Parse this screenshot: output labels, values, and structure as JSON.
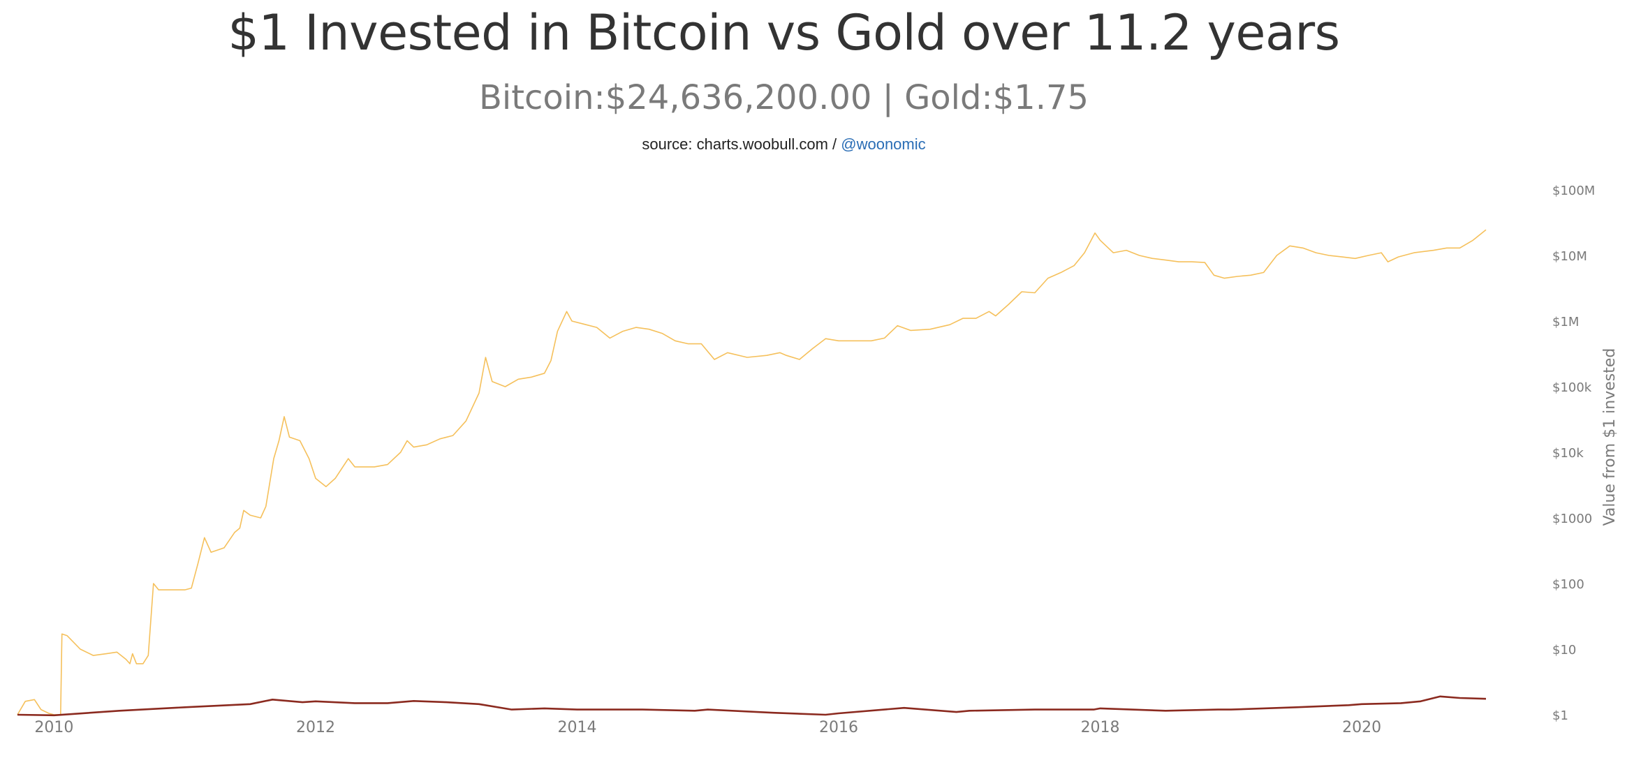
{
  "header": {
    "title": "$1 Invested in Bitcoin vs Gold over 11.2 years",
    "subtitle": "Bitcoin:$24,636,200.00 | Gold:$1.75",
    "source_prefix": "source: charts.woobull.com / ",
    "source_handle": "@woonomic"
  },
  "colors": {
    "bitcoin": "#f5c05b",
    "gold": "#8b2a1f",
    "axis_text": "#7a7a7a",
    "link": "#2a6db5"
  },
  "chart_data": {
    "type": "line",
    "title": "$1 Invested in Bitcoin vs Gold over 11.2 years",
    "subtitle": "Bitcoin:$24,636,200.00 | Gold:$1.75",
    "ylabel": "Value from $1 invested",
    "xlabel": "",
    "y_scale": "log",
    "ylim": [
      1,
      100000000
    ],
    "xlim": [
      2009.72,
      2020.95
    ],
    "x_ticks": [
      2010,
      2012,
      2014,
      2016,
      2018,
      2020
    ],
    "x_tick_labels": [
      "2010",
      "2012",
      "2014",
      "2016",
      "2018",
      "2020"
    ],
    "y_ticks": [
      1,
      10,
      100,
      1000,
      10000,
      100000,
      1000000,
      10000000,
      100000000
    ],
    "y_tick_labels": [
      "$1",
      "$10",
      "$100",
      "$1000",
      "$10k",
      "$100k",
      "$1M",
      "$10M",
      "$100M"
    ],
    "grid": false,
    "legend": "none",
    "series": [
      {
        "points": [
          [
            2009.72,
            1.0
          ],
          [
            2009.78,
            1.6
          ],
          [
            2009.85,
            1.7
          ],
          [
            2009.9,
            1.2
          ],
          [
            2009.96,
            1.05
          ],
          [
            2010.0,
            1.0
          ],
          [
            2010.05,
            1.0
          ],
          [
            2010.06,
            17
          ],
          [
            2010.1,
            16
          ],
          [
            2010.2,
            10
          ],
          [
            2010.3,
            8
          ],
          [
            2010.4,
            8.5
          ],
          [
            2010.48,
            9
          ],
          [
            2010.55,
            7
          ],
          [
            2010.58,
            6
          ],
          [
            2010.6,
            8.5
          ],
          [
            2010.63,
            6
          ],
          [
            2010.68,
            6
          ],
          [
            2010.72,
            8
          ],
          [
            2010.76,
            100
          ],
          [
            2010.8,
            80
          ],
          [
            2010.9,
            80
          ],
          [
            2011.0,
            80
          ],
          [
            2011.05,
            85
          ],
          [
            2011.1,
            200
          ],
          [
            2011.15,
            500
          ],
          [
            2011.2,
            300
          ],
          [
            2011.3,
            350
          ],
          [
            2011.38,
            600
          ],
          [
            2011.42,
            700
          ],
          [
            2011.45,
            1300
          ],
          [
            2011.5,
            1100
          ],
          [
            2011.58,
            1000
          ],
          [
            2011.62,
            1500
          ],
          [
            2011.68,
            8000
          ],
          [
            2011.72,
            15000
          ],
          [
            2011.76,
            35000
          ],
          [
            2011.8,
            17000
          ],
          [
            2011.88,
            15000
          ],
          [
            2011.95,
            8000
          ],
          [
            2012.0,
            4000
          ],
          [
            2012.08,
            3000
          ],
          [
            2012.15,
            4000
          ],
          [
            2012.25,
            8000
          ],
          [
            2012.3,
            6000
          ],
          [
            2012.45,
            6000
          ],
          [
            2012.55,
            6500
          ],
          [
            2012.65,
            10000
          ],
          [
            2012.7,
            15000
          ],
          [
            2012.75,
            12000
          ],
          [
            2012.85,
            13000
          ],
          [
            2012.95,
            16000
          ],
          [
            2013.05,
            18000
          ],
          [
            2013.15,
            30000
          ],
          [
            2013.25,
            80000
          ],
          [
            2013.3,
            280000
          ],
          [
            2013.35,
            120000
          ],
          [
            2013.45,
            100000
          ],
          [
            2013.55,
            130000
          ],
          [
            2013.65,
            140000
          ],
          [
            2013.75,
            160000
          ],
          [
            2013.8,
            250000
          ],
          [
            2013.85,
            700000
          ],
          [
            2013.92,
            1400000
          ],
          [
            2013.96,
            1000000
          ],
          [
            2014.05,
            900000
          ],
          [
            2014.15,
            800000
          ],
          [
            2014.25,
            550000
          ],
          [
            2014.35,
            700000
          ],
          [
            2014.45,
            800000
          ],
          [
            2014.55,
            750000
          ],
          [
            2014.65,
            650000
          ],
          [
            2014.75,
            500000
          ],
          [
            2014.85,
            450000
          ],
          [
            2014.95,
            450000
          ],
          [
            2015.05,
            260000
          ],
          [
            2015.15,
            330000
          ],
          [
            2015.3,
            280000
          ],
          [
            2015.45,
            300000
          ],
          [
            2015.55,
            330000
          ],
          [
            2015.6,
            300000
          ],
          [
            2015.7,
            260000
          ],
          [
            2015.8,
            380000
          ],
          [
            2015.9,
            540000
          ],
          [
            2016.0,
            500000
          ],
          [
            2016.1,
            500000
          ],
          [
            2016.25,
            500000
          ],
          [
            2016.35,
            550000
          ],
          [
            2016.45,
            850000
          ],
          [
            2016.55,
            720000
          ],
          [
            2016.7,
            750000
          ],
          [
            2016.85,
            880000
          ],
          [
            2016.95,
            1100000
          ],
          [
            2017.05,
            1100000
          ],
          [
            2017.15,
            1400000
          ],
          [
            2017.2,
            1200000
          ],
          [
            2017.3,
            1800000
          ],
          [
            2017.4,
            2800000
          ],
          [
            2017.5,
            2700000
          ],
          [
            2017.6,
            4500000
          ],
          [
            2017.7,
            5500000
          ],
          [
            2017.8,
            7000000
          ],
          [
            2017.88,
            11000000
          ],
          [
            2017.96,
            22000000
          ],
          [
            2018.0,
            17000000
          ],
          [
            2018.1,
            11000000
          ],
          [
            2018.2,
            12000000
          ],
          [
            2018.3,
            10000000
          ],
          [
            2018.4,
            9000000
          ],
          [
            2018.5,
            8500000
          ],
          [
            2018.6,
            8000000
          ],
          [
            2018.7,
            8000000
          ],
          [
            2018.8,
            7800000
          ],
          [
            2018.87,
            5000000
          ],
          [
            2018.95,
            4500000
          ],
          [
            2019.05,
            4800000
          ],
          [
            2019.15,
            5000000
          ],
          [
            2019.25,
            5500000
          ],
          [
            2019.35,
            10000000
          ],
          [
            2019.45,
            14000000
          ],
          [
            2019.55,
            13000000
          ],
          [
            2019.65,
            11000000
          ],
          [
            2019.75,
            10000000
          ],
          [
            2019.85,
            9500000
          ],
          [
            2019.95,
            9000000
          ],
          [
            2020.05,
            10000000
          ],
          [
            2020.15,
            11000000
          ],
          [
            2020.2,
            8000000
          ],
          [
            2020.28,
            9500000
          ],
          [
            2020.4,
            11000000
          ],
          [
            2020.55,
            12000000
          ],
          [
            2020.65,
            13000000
          ],
          [
            2020.75,
            13000000
          ],
          [
            2020.85,
            17000000
          ],
          [
            2020.95,
            24636200
          ]
        ]
      },
      {
        "points": [
          [
            2009.72,
            1.0
          ],
          [
            2010.0,
            0.98
          ],
          [
            2010.5,
            1.15
          ],
          [
            2011.0,
            1.3
          ],
          [
            2011.5,
            1.45
          ],
          [
            2011.67,
            1.7
          ],
          [
            2011.9,
            1.55
          ],
          [
            2012.0,
            1.6
          ],
          [
            2012.3,
            1.5
          ],
          [
            2012.55,
            1.5
          ],
          [
            2012.75,
            1.62
          ],
          [
            2013.0,
            1.55
          ],
          [
            2013.25,
            1.45
          ],
          [
            2013.5,
            1.2
          ],
          [
            2013.75,
            1.25
          ],
          [
            2014.0,
            1.2
          ],
          [
            2014.5,
            1.2
          ],
          [
            2014.9,
            1.15
          ],
          [
            2015.0,
            1.2
          ],
          [
            2015.5,
            1.07
          ],
          [
            2015.9,
            1.0
          ],
          [
            2016.0,
            1.05
          ],
          [
            2016.5,
            1.27
          ],
          [
            2016.9,
            1.1
          ],
          [
            2017.0,
            1.15
          ],
          [
            2017.5,
            1.2
          ],
          [
            2017.95,
            1.2
          ],
          [
            2018.0,
            1.25
          ],
          [
            2018.5,
            1.15
          ],
          [
            2018.9,
            1.2
          ],
          [
            2019.0,
            1.2
          ],
          [
            2019.5,
            1.3
          ],
          [
            2019.9,
            1.4
          ],
          [
            2020.0,
            1.45
          ],
          [
            2020.3,
            1.5
          ],
          [
            2020.45,
            1.6
          ],
          [
            2020.6,
            1.9
          ],
          [
            2020.75,
            1.8
          ],
          [
            2020.95,
            1.75
          ]
        ]
      }
    ]
  }
}
